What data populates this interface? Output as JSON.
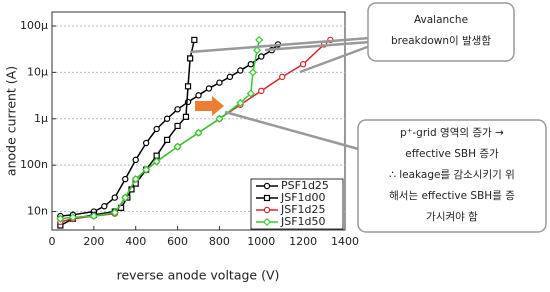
{
  "chart_data": {
    "type": "line",
    "y_label": "anode current (A)",
    "x_label": "reverse anode voltage (V)",
    "log_y": true,
    "grid": true,
    "legend": "lower right",
    "xlim": [
      0,
      1400
    ],
    "xticks": [
      0,
      200,
      400,
      600,
      800,
      1000,
      1200,
      1400
    ],
    "ylim": [
      4e-09,
      0.0002
    ],
    "yticks": [
      {
        "value": 1e-08,
        "label": "10n"
      },
      {
        "value": 1e-07,
        "label": "100n"
      },
      {
        "value": 1e-06,
        "label": "1µ"
      },
      {
        "value": 1e-05,
        "label": "10µ"
      },
      {
        "value": 0.0001,
        "label": "100µ"
      }
    ],
    "series": [
      {
        "name": "PSF1d25",
        "color": "#000000",
        "marker": "circle",
        "x": [
          40,
          100,
          200,
          250,
          300,
          350,
          400,
          450,
          500,
          550,
          600,
          650,
          700,
          750,
          800,
          850,
          900,
          950,
          1000,
          1050,
          1080
        ],
        "values": [
          8e-09,
          8.5e-09,
          1e-08,
          1.3e-08,
          2e-08,
          5e-08,
          1.3e-07,
          3e-07,
          6e-07,
          1e-06,
          1.6e-06,
          2.3e-06,
          3.2e-06,
          4.5e-06,
          6e-06,
          8e-06,
          1.1e-05,
          1.5e-05,
          2.2e-05,
          3e-05,
          4e-05
        ]
      },
      {
        "name": "JSF1d00",
        "color": "#000000",
        "marker": "square",
        "x": [
          40,
          100,
          200,
          300,
          330,
          360,
          380,
          400,
          450,
          500,
          550,
          600,
          640,
          650,
          660,
          680
        ],
        "values": [
          5e-09,
          7e-09,
          8.5e-09,
          1e-08,
          1.2e-08,
          2e-08,
          3e-08,
          4e-08,
          8e-08,
          1.6e-07,
          3.5e-07,
          7e-07,
          1.1e-06,
          5e-06,
          2e-05,
          5e-05
        ]
      },
      {
        "name": "JSF1d25",
        "color": "#d62728",
        "marker": "circle",
        "x": [
          40,
          100,
          200,
          300,
          350,
          400,
          450,
          500,
          600,
          700,
          800,
          900,
          1000,
          1100,
          1200,
          1300,
          1330
        ],
        "values": [
          6e-09,
          7e-09,
          8e-09,
          9e-09,
          2e-08,
          5e-08,
          8e-08,
          1.2e-07,
          2.5e-07,
          5e-07,
          1e-06,
          2e-06,
          4e-06,
          8e-06,
          1.5e-05,
          4e-05,
          5e-05
        ]
      },
      {
        "name": "JSF1d50",
        "color": "#33cc33",
        "marker": "diamond",
        "x": [
          40,
          100,
          200,
          300,
          350,
          400,
          450,
          500,
          600,
          700,
          800,
          900,
          950,
          960,
          980,
          990
        ],
        "values": [
          7e-09,
          7.5e-09,
          8e-09,
          9.5e-09,
          2e-08,
          5e-08,
          8e-08,
          1.2e-07,
          2.5e-07,
          5e-07,
          1e-06,
          2.2e-06,
          3.5e-06,
          1e-05,
          3e-05,
          5e-05
        ]
      }
    ]
  },
  "annotations": [
    {
      "lines": [
        "Avalanche",
        "breakdown이 발생함"
      ]
    },
    {
      "lines": [
        "p⁺-grid 영역의 증가 →",
        "effective SBH 증가",
        "∴ leakage를 감소시키기 위",
        "해서는 effective SBH를 증",
        "가시켜야 함"
      ]
    }
  ]
}
